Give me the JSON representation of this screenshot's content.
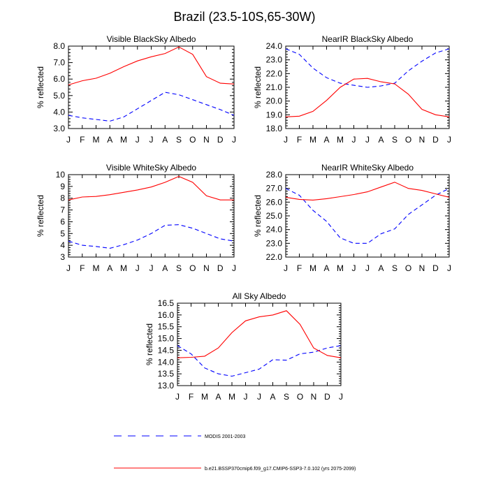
{
  "title": "Brazil (23.5-10S,65-30W)",
  "legend": {
    "modis_label": "MODIS 2001-2003",
    "model_label": "b.e21.BSSP370cmip6.f09_g17.CMIP6-SSP3-7.0.102 (yrs 2075-2099)",
    "modis_color": "#0000ff",
    "model_color": "#ff0000"
  },
  "chart_data": [
    {
      "type": "line",
      "title": "Visible BlackSky Albedo",
      "ylabel": "% reflected",
      "categories": [
        "J",
        "F",
        "M",
        "A",
        "M",
        "J",
        "J",
        "A",
        "S",
        "O",
        "N",
        "D",
        "J"
      ],
      "ylim": [
        3.0,
        8.0
      ],
      "yticks": [
        "3.0",
        "4.0",
        "5.0",
        "6.0",
        "7.0",
        "8.0"
      ],
      "series": [
        {
          "name": "MODIS 2001-2003",
          "style": "dashed",
          "color": "#0000ff",
          "values": [
            3.8,
            3.65,
            3.55,
            3.45,
            3.7,
            4.2,
            4.7,
            5.2,
            5.05,
            4.75,
            4.45,
            4.15,
            3.8
          ]
        },
        {
          "name": "b.e21.BSSP370cmip6.f09_g17.CMIP6-SSP3-7.0.102 (yrs 2075-2099)",
          "style": "solid",
          "color": "#ff0000",
          "values": [
            5.65,
            5.9,
            6.05,
            6.35,
            6.75,
            7.1,
            7.35,
            7.55,
            7.95,
            7.5,
            6.15,
            5.75,
            5.7
          ]
        }
      ]
    },
    {
      "type": "line",
      "title": "NearIR BlackSky Albedo",
      "ylabel": "% reflected",
      "categories": [
        "J",
        "F",
        "M",
        "A",
        "M",
        "J",
        "J",
        "A",
        "S",
        "O",
        "N",
        "D",
        "J"
      ],
      "ylim": [
        18.0,
        24.0
      ],
      "yticks": [
        "18.0",
        "19.0",
        "20.0",
        "21.0",
        "22.0",
        "23.0",
        "24.0"
      ],
      "series": [
        {
          "name": "MODIS 2001-2003",
          "style": "dashed",
          "color": "#0000ff",
          "values": [
            23.8,
            23.4,
            22.4,
            21.7,
            21.3,
            21.15,
            21.0,
            21.1,
            21.3,
            22.2,
            22.9,
            23.5,
            23.8
          ]
        },
        {
          "name": "b.e21.BSSP370cmip6.f09_g17.CMIP6-SSP3-7.0.102 (yrs 2075-2099)",
          "style": "solid",
          "color": "#ff0000",
          "values": [
            18.85,
            18.9,
            19.25,
            20.05,
            21.0,
            21.6,
            21.65,
            21.4,
            21.25,
            20.5,
            19.4,
            19.0,
            18.85
          ]
        }
      ]
    },
    {
      "type": "line",
      "title": "Visible WhiteSky Albedo",
      "ylabel": "% reflected",
      "categories": [
        "J",
        "F",
        "M",
        "A",
        "M",
        "J",
        "J",
        "A",
        "S",
        "O",
        "N",
        "D",
        "J"
      ],
      "ylim": [
        3,
        10
      ],
      "yticks": [
        "3",
        "4",
        "5",
        "6",
        "7",
        "8",
        "9",
        "10"
      ],
      "series": [
        {
          "name": "MODIS 2001-2003",
          "style": "dashed",
          "color": "#0000ff",
          "values": [
            4.35,
            4.0,
            3.9,
            3.75,
            4.05,
            4.45,
            5.0,
            5.7,
            5.75,
            5.45,
            5.0,
            4.55,
            4.35
          ]
        },
        {
          "name": "b.e21.BSSP370cmip6.f09_g17.CMIP6-SSP3-7.0.102 (yrs 2075-2099)",
          "style": "solid",
          "color": "#ff0000",
          "values": [
            7.85,
            8.1,
            8.15,
            8.3,
            8.5,
            8.7,
            8.95,
            9.35,
            9.85,
            9.35,
            8.2,
            7.85,
            7.85
          ]
        }
      ]
    },
    {
      "type": "line",
      "title": "NearIR WhiteSky Albedo",
      "ylabel": "% reflected",
      "categories": [
        "J",
        "F",
        "M",
        "A",
        "M",
        "J",
        "J",
        "A",
        "S",
        "O",
        "N",
        "D",
        "J"
      ],
      "ylim": [
        22.0,
        28.0
      ],
      "yticks": [
        "22.0",
        "23.0",
        "24.0",
        "25.0",
        "26.0",
        "27.0",
        "28.0"
      ],
      "series": [
        {
          "name": "MODIS 2001-2003",
          "style": "dashed",
          "color": "#0000ff",
          "values": [
            27.0,
            26.5,
            25.4,
            24.6,
            23.4,
            23.0,
            23.0,
            23.7,
            24.05,
            25.1,
            25.8,
            26.5,
            27.0
          ]
        },
        {
          "name": "b.e21.BSSP370cmip6.f09_g17.CMIP6-SSP3-7.0.102 (yrs 2075-2099)",
          "style": "solid",
          "color": "#ff0000",
          "values": [
            26.35,
            26.2,
            26.15,
            26.25,
            26.4,
            26.55,
            26.75,
            27.1,
            27.45,
            27.0,
            26.85,
            26.6,
            26.35
          ]
        }
      ]
    },
    {
      "type": "line",
      "title": "All Sky Albedo",
      "ylabel": "% reflected",
      "categories": [
        "J",
        "F",
        "M",
        "A",
        "M",
        "J",
        "J",
        "A",
        "S",
        "O",
        "N",
        "D",
        "J"
      ],
      "ylim": [
        13.0,
        16.5
      ],
      "yticks": [
        "13.0",
        "13.5",
        "14.0",
        "14.5",
        "15.0",
        "15.5",
        "16.0",
        "16.5"
      ],
      "series": [
        {
          "name": "MODIS 2001-2003",
          "style": "dashed",
          "color": "#0000ff",
          "values": [
            14.7,
            14.35,
            13.75,
            13.5,
            13.4,
            13.55,
            13.7,
            14.1,
            14.08,
            14.35,
            14.42,
            14.6,
            14.7
          ]
        },
        {
          "name": "b.e21.BSSP370cmip6.f09_g17.CMIP6-SSP3-7.0.102 (yrs 2075-2099)",
          "style": "solid",
          "color": "#ff0000",
          "values": [
            14.18,
            14.2,
            14.25,
            14.6,
            15.25,
            15.75,
            15.92,
            16.0,
            16.18,
            15.6,
            14.6,
            14.28,
            14.18
          ]
        }
      ]
    }
  ]
}
